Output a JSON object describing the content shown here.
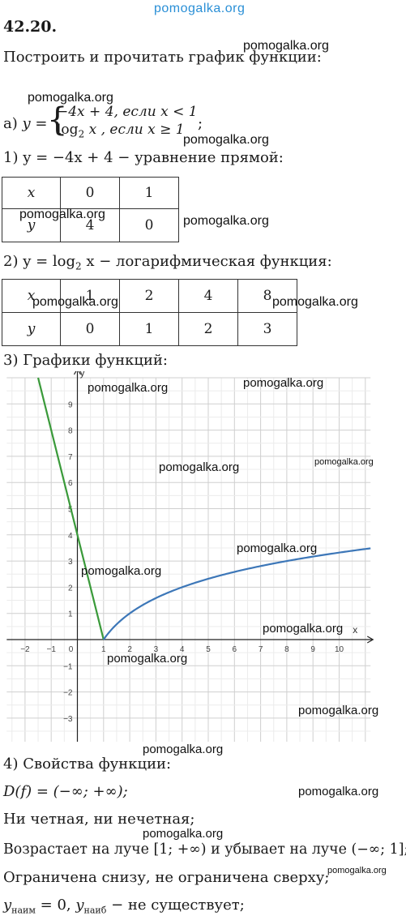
{
  "watermark": "pomogalka.org",
  "problem_number": "42.20.",
  "task": "Построить и прочитать график функции:",
  "part_a": {
    "label": "а)",
    "y_eq": "y =",
    "case1": "−4x + 4, если x < 1",
    "case2_log": "log",
    "case2_sub": "2",
    "case2_rest": " x , если x ≥ 1",
    "semicolon": ";"
  },
  "step1": {
    "text": "1) y = −4x + 4 − уравнение прямой:"
  },
  "table1": {
    "rows": [
      [
        "x",
        "0",
        "1"
      ],
      [
        "y",
        "4",
        "0"
      ]
    ]
  },
  "step2": {
    "prefix": "2) y = log",
    "sub": "2",
    "rest": " x − логарифмическая функция:"
  },
  "table2": {
    "rows": [
      [
        "x",
        "1",
        "2",
        "4",
        "8"
      ],
      [
        "y",
        "0",
        "1",
        "2",
        "3"
      ]
    ]
  },
  "step3": {
    "text": "3) Графики функций:"
  },
  "chart_data": {
    "type": "line",
    "xlabel": "x",
    "ylabel": "y",
    "xlim": [
      -2.7,
      11.2
    ],
    "ylim": [
      -3.9,
      10.0
    ],
    "x_ticks": [
      "−2",
      "−1",
      "0",
      "1",
      "2",
      "3",
      "4",
      "5",
      "6",
      "7",
      "8",
      "9",
      "10"
    ],
    "y_ticks": [
      "9",
      "8",
      "7",
      "6",
      "5",
      "4",
      "3",
      "2",
      "1",
      "−1",
      "−2",
      "−3"
    ],
    "grid": true,
    "series": [
      {
        "formula": "y = −4x + 4",
        "domain": [
          -1.5,
          1
        ],
        "color": "#3a9a3a"
      },
      {
        "formula": "y = log2 x",
        "domain": [
          1,
          11.2
        ],
        "color": "#3d77b8"
      }
    ]
  },
  "step4": {
    "text": "4) Свойства функции:"
  },
  "props": {
    "domain": "D(f) = (−∞; +∞);",
    "parity": "Ни четная, ни нечетная;",
    "monotony": "Возрастает на луче [1; +∞) и убывает на луче (−∞; 1];",
    "bounded": "Ограничена снизу, не ограничена сверху;",
    "extrema": {
      "min_y": "y",
      "min_sub": "наим",
      "min_val": " = 0,  ",
      "max_y": "y",
      "max_sub": "наиб",
      "max_rest": " − не существует;"
    }
  }
}
